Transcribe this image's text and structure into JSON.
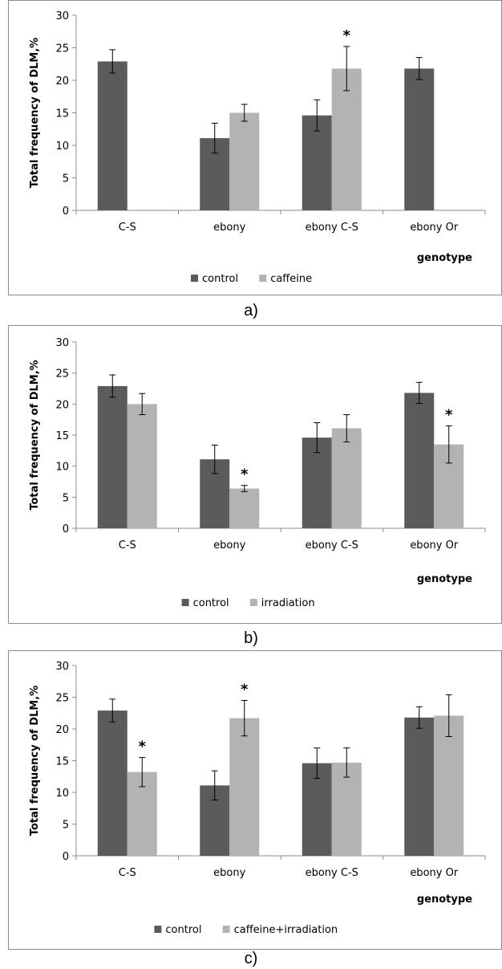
{
  "colors": {
    "control": "#5b5b5b",
    "treatment": "#b3b3b3",
    "axis": "#8c8c8c",
    "errorbar": "#000000"
  },
  "chart_data": [
    {
      "type": "bar",
      "panel_label": "a)",
      "ylabel": "Total frequency of DLM,%",
      "xlabel": "genotype",
      "ylim": [
        0,
        30
      ],
      "yticks": [
        "0",
        "5",
        "10",
        "15",
        "20",
        "25",
        "30"
      ],
      "categories": [
        "C-S",
        "ebony",
        "ebony C-S",
        "ebony Or"
      ],
      "legend_position": "bottom",
      "series": [
        {
          "name": "control",
          "values": [
            22.9,
            11.1,
            14.6,
            21.8
          ],
          "errors": [
            1.8,
            2.3,
            2.4,
            1.7
          ]
        },
        {
          "name": "caffeine",
          "values": [
            null,
            15.0,
            21.8,
            null
          ],
          "errors": [
            null,
            1.3,
            3.4,
            null
          ]
        }
      ],
      "annotations": [
        {
          "category": "ebony C-S",
          "series": 1,
          "text": "*"
        }
      ]
    },
    {
      "type": "bar",
      "panel_label": "b)",
      "ylabel": "Total frequency of DLM,%",
      "xlabel": "genotype",
      "ylim": [
        0,
        30
      ],
      "yticks": [
        "0",
        "5",
        "10",
        "15",
        "20",
        "25",
        "30"
      ],
      "categories": [
        "C-S",
        "ebony",
        "ebony C-S",
        "ebony Or"
      ],
      "legend_position": "bottom",
      "series": [
        {
          "name": "control",
          "values": [
            22.9,
            11.1,
            14.6,
            21.8
          ],
          "errors": [
            1.8,
            2.3,
            2.4,
            1.7
          ]
        },
        {
          "name": "irradiation",
          "values": [
            20.0,
            6.4,
            16.1,
            13.5
          ],
          "errors": [
            1.7,
            0.5,
            2.2,
            3.0
          ]
        }
      ],
      "annotations": [
        {
          "category": "ebony",
          "series": 1,
          "text": "*"
        },
        {
          "category": "ebony Or",
          "series": 1,
          "text": "*"
        }
      ]
    },
    {
      "type": "bar",
      "panel_label": "c)",
      "ylabel": "Total frequency of DLM,%",
      "xlabel": "genotype",
      "ylim": [
        0,
        30
      ],
      "yticks": [
        "0",
        "5",
        "10",
        "15",
        "20",
        "25",
        "30"
      ],
      "categories": [
        "C-S",
        "ebony",
        "ebony C-S",
        "ebony Or"
      ],
      "legend_position": "bottom",
      "series": [
        {
          "name": "control",
          "values": [
            22.9,
            11.1,
            14.6,
            21.8
          ],
          "errors": [
            1.8,
            2.3,
            2.4,
            1.7
          ]
        },
        {
          "name": "caffeine+irradiation",
          "values": [
            13.2,
            21.7,
            14.7,
            22.1
          ],
          "errors": [
            2.3,
            2.8,
            2.3,
            3.3
          ]
        }
      ],
      "annotations": [
        {
          "category": "C-S",
          "series": 1,
          "text": "*"
        },
        {
          "category": "ebony",
          "series": 1,
          "text": "*"
        }
      ]
    }
  ]
}
